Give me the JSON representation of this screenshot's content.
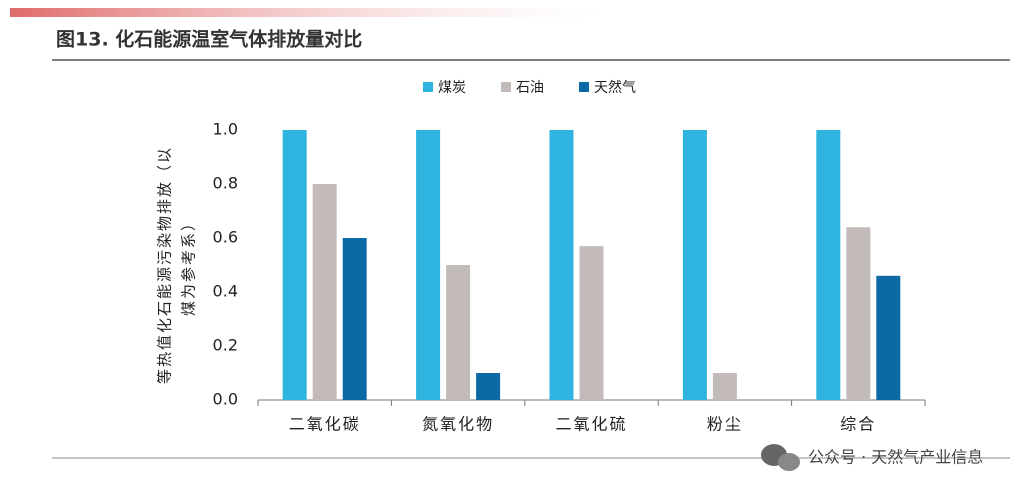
{
  "chart_data": {
    "type": "bar",
    "title": "图13. 化石能源温室气体排放量对比",
    "y_label_lines": [
      "等热值化石能源污染物排放（以",
      "煤为参考系）"
    ],
    "categories": [
      "二氧化碳",
      "氮氧化物",
      "二氧化硫",
      "粉尘",
      "综合"
    ],
    "series": [
      {
        "name": "煤炭",
        "color": "#2fb4e0",
        "values": [
          1.0,
          1.0,
          1.0,
          1.0,
          1.0
        ]
      },
      {
        "name": "石油",
        "color": "#c3bbb9",
        "values": [
          0.8,
          0.5,
          0.57,
          0.1,
          0.64
        ]
      },
      {
        "name": "天然气",
        "color": "#0b6aa6",
        "values": [
          0.6,
          0.1,
          0,
          0,
          0.46
        ]
      }
    ],
    "ylim": [
      0,
      1.0
    ],
    "yticks": [
      {
        "value": 0,
        "label": "0.0"
      },
      0.2,
      0.4,
      0.6,
      0.8,
      {
        "value": 1.0,
        "label": "1.0"
      }
    ],
    "legend_position": "top",
    "watermark": "公众号 · 天然气产业信息"
  }
}
